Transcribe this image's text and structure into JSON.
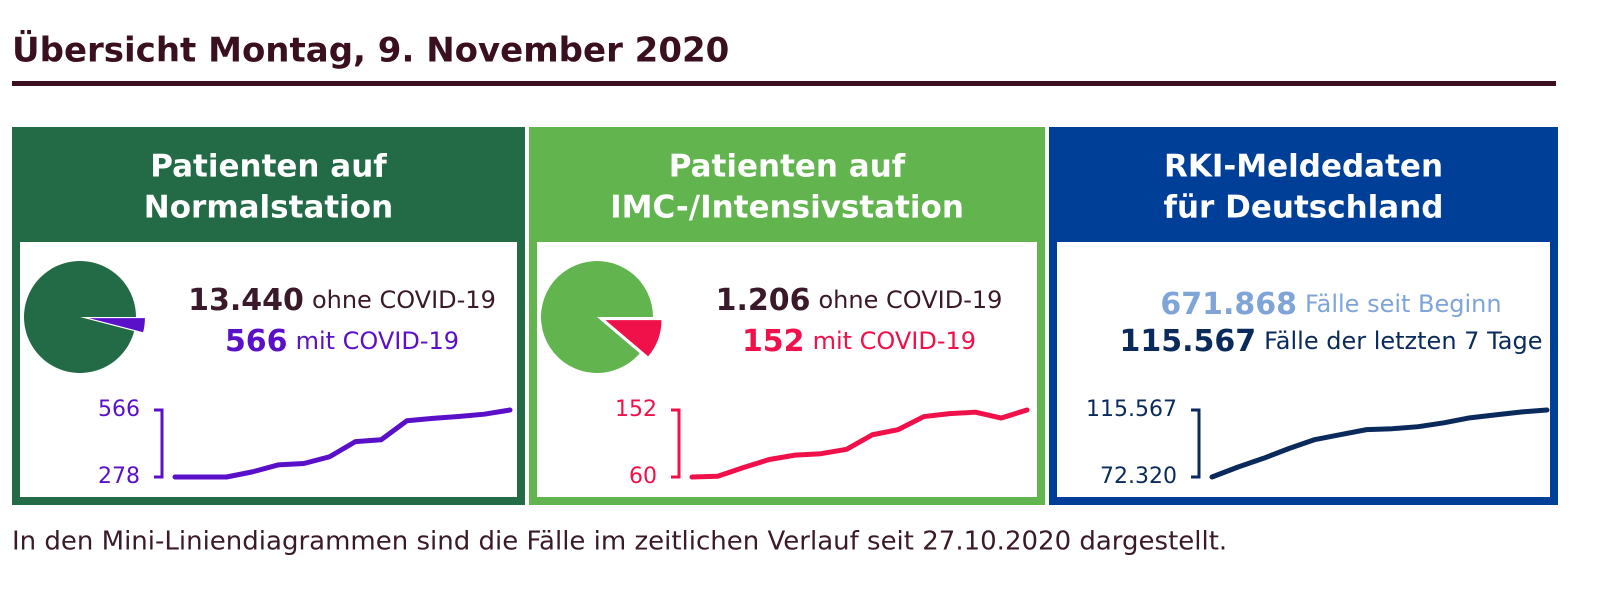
{
  "title": "Übersicht Montag, 9. November 2020",
  "panels": [
    {
      "title_lines": [
        "Patienten auf",
        "Normalstation"
      ],
      "color": "#236b47",
      "pie": true,
      "stats": {
        "values": [
          13440,
          566
        ],
        "value_labels": [
          "13.440",
          "566"
        ],
        "texts": [
          "ohne COVID-19",
          "mit COVID-19"
        ],
        "colors": [
          "#3a1a2a",
          "#5a10c8"
        ]
      },
      "line": {
        "type": "line",
        "color": "#5a10c8",
        "ylim": [
          278,
          566
        ],
        "yticks": [
          278,
          566
        ],
        "values": [
          278,
          278,
          278,
          300,
          330,
          336,
          365,
          430,
          438,
          520,
          530,
          538,
          548,
          566
        ]
      }
    },
    {
      "title_lines": [
        "Patienten auf",
        "IMC-/Intensivstation"
      ],
      "color": "#62b44e",
      "pie": true,
      "stats": {
        "values": [
          1206,
          152
        ],
        "value_labels": [
          "1.206",
          "152"
        ],
        "texts": [
          "ohne COVID-19",
          "mit COVID-19"
        ],
        "colors": [
          "#3a1a2a",
          "#f0104a"
        ]
      },
      "line": {
        "type": "line",
        "color": "#f0104a",
        "ylim": [
          60,
          152
        ],
        "yticks": [
          60,
          152
        ],
        "values": [
          60,
          61,
          73,
          84,
          90,
          92,
          98,
          118,
          125,
          143,
          147,
          149,
          141,
          152
        ]
      }
    },
    {
      "title_lines": [
        "RKI-Meldedaten",
        "für Deutschland"
      ],
      "color": "#003f98",
      "pie": false,
      "stats": {
        "values": [
          671868,
          115567
        ],
        "value_labels": [
          "671.868",
          "115.567"
        ],
        "texts": [
          "Fälle seit Beginn",
          "Fälle der letzten 7 Tage"
        ],
        "colors": [
          "#7fa4d8",
          "#0a2a5c"
        ]
      },
      "line": {
        "type": "line",
        "color": "#0a2a5c",
        "ylim": [
          72320,
          115567
        ],
        "yticks": [
          {
            "value": 72320,
            "label": "72.320"
          },
          {
            "value": 115567,
            "label": "115.567"
          }
        ],
        "values": [
          72320,
          78700,
          84400,
          90800,
          96500,
          99700,
          102900,
          103500,
          104800,
          107300,
          110500,
          112400,
          114300,
          115567
        ]
      }
    }
  ],
  "footnote": "In den Mini-Liniendiagrammen sind die Fälle im zeitlichen Verlauf seit 27.10.2020 dargestellt."
}
